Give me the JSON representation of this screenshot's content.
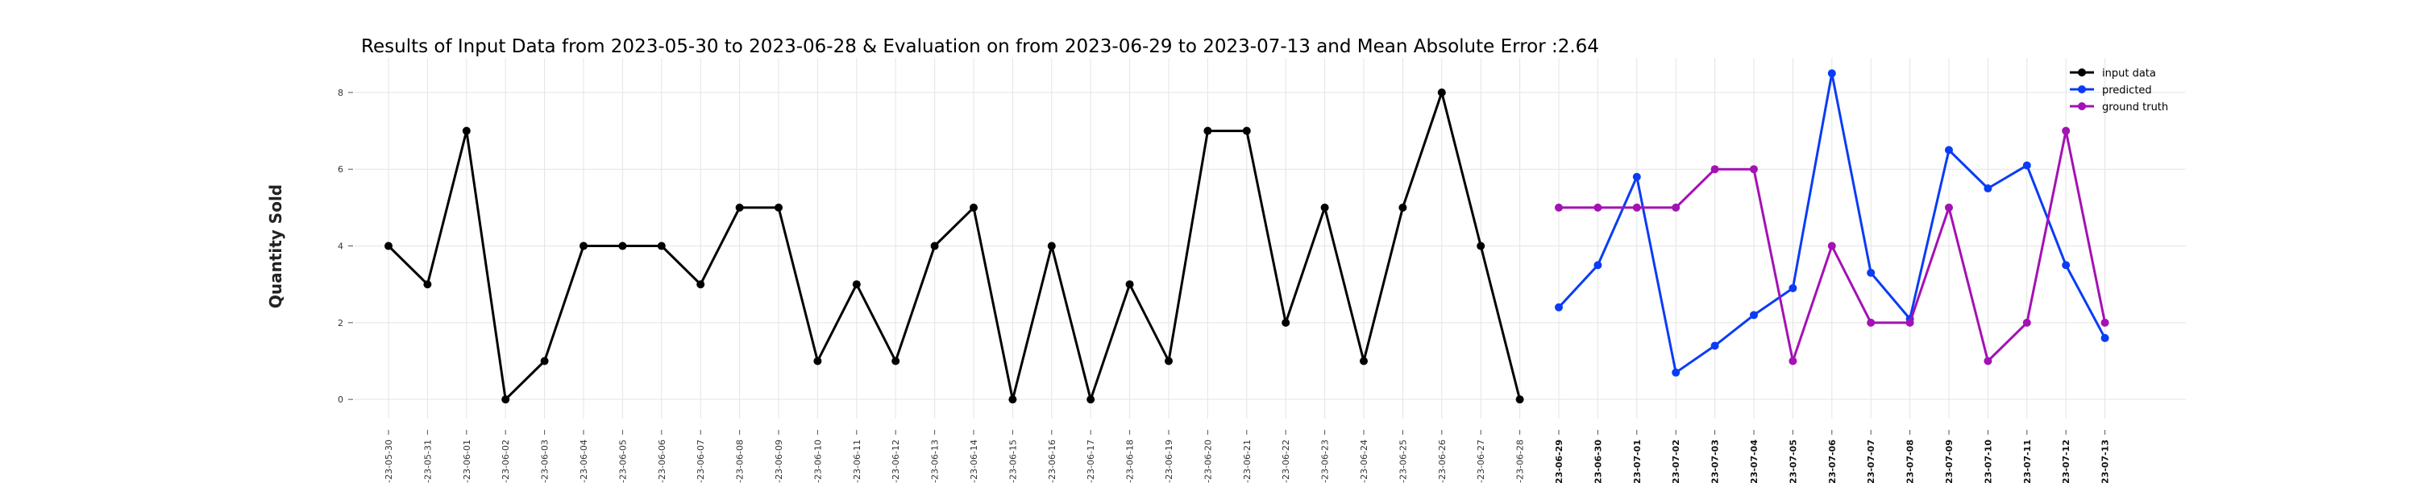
{
  "chart_data": {
    "type": "line",
    "title": "Results of Input Data from 2023-05-30 to 2023-06-28 & Evaluation on from 2023-06-29 to 2023-07-13 and Mean Absolute Error  :2.64",
    "xlabel": "",
    "ylabel": "Quantity Sold",
    "ylim": [
      -0.5,
      8.9
    ],
    "yticks": [
      0,
      2,
      4,
      6,
      8
    ],
    "grid": true,
    "legend": "top-right",
    "x": [
      "2023-05-30",
      "2023-05-31",
      "2023-06-01",
      "2023-06-02",
      "2023-06-03",
      "2023-06-04",
      "2023-06-05",
      "2023-06-06",
      "2023-06-07",
      "2023-06-08",
      "2023-06-09",
      "2023-06-10",
      "2023-06-11",
      "2023-06-12",
      "2023-06-13",
      "2023-06-14",
      "2023-06-15",
      "2023-06-16",
      "2023-06-17",
      "2023-06-18",
      "2023-06-19",
      "2023-06-20",
      "2023-06-21",
      "2023-06-22",
      "2023-06-23",
      "2023-06-24",
      "2023-06-25",
      "2023-06-26",
      "2023-06-27",
      "2023-06-28",
      "2023-06-29",
      "2023-06-30",
      "2023-07-01",
      "2023-07-02",
      "2023-07-03",
      "2023-07-04",
      "2023-07-05",
      "2023-07-06",
      "2023-07-07",
      "2023-07-08",
      "2023-07-09",
      "2023-07-10",
      "2023-07-11",
      "2023-07-12",
      "2023-07-13"
    ],
    "x_tick_labels": [
      "-23-05-30",
      "-23-05-31",
      "-23-06-01",
      "-23-06-02",
      "-23-06-03",
      "-23-06-04",
      "-23-06-05",
      "-23-06-06",
      "-23-06-07",
      "-23-06-08",
      "-23-06-09",
      "-23-06-10",
      "-23-06-11",
      "-23-06-12",
      "-23-06-13",
      "-23-06-14",
      "-23-06-15",
      "-23-06-16",
      "-23-06-17",
      "-23-06-18",
      "-23-06-19",
      "-23-06-20",
      "-23-06-21",
      "-23-06-22",
      "-23-06-23",
      "-23-06-24",
      "-23-06-25",
      "-23-06-26",
      "-23-06-27",
      "-23-06-28",
      "023-06-29",
      "023-06-30",
      "023-07-01",
      "023-07-02",
      "023-07-03",
      "023-07-04",
      "023-07-05",
      "023-07-06",
      "023-07-07",
      "023-07-08",
      "023-07-09",
      "023-07-10",
      "023-07-11",
      "023-07-12",
      "023-07-13"
    ],
    "series": [
      {
        "name": "input data",
        "color": "#000000",
        "x": [
          "2023-05-30",
          "2023-05-31",
          "2023-06-01",
          "2023-06-02",
          "2023-06-03",
          "2023-06-04",
          "2023-06-05",
          "2023-06-06",
          "2023-06-07",
          "2023-06-08",
          "2023-06-09",
          "2023-06-10",
          "2023-06-11",
          "2023-06-12",
          "2023-06-13",
          "2023-06-14",
          "2023-06-15",
          "2023-06-16",
          "2023-06-17",
          "2023-06-18",
          "2023-06-19",
          "2023-06-20",
          "2023-06-21",
          "2023-06-22",
          "2023-06-23",
          "2023-06-24",
          "2023-06-25",
          "2023-06-26",
          "2023-06-27",
          "2023-06-28"
        ],
        "values": [
          4,
          3,
          7,
          0,
          1,
          4,
          4,
          4,
          3,
          5,
          5,
          1,
          3,
          1,
          4,
          5,
          0,
          4,
          0,
          3,
          1,
          7,
          7,
          2,
          5,
          1,
          5,
          8,
          4,
          0
        ]
      },
      {
        "name": "predicted",
        "color": "#0a3cf5",
        "x": [
          "2023-06-29",
          "2023-06-30",
          "2023-07-01",
          "2023-07-02",
          "2023-07-03",
          "2023-07-04",
          "2023-07-05",
          "2023-07-06",
          "2023-07-07",
          "2023-07-08",
          "2023-07-09",
          "2023-07-10",
          "2023-07-11",
          "2023-07-12",
          "2023-07-13"
        ],
        "values": [
          2.4,
          3.5,
          5.8,
          0.7,
          1.4,
          2.2,
          2.9,
          8.5,
          3.3,
          2.1,
          6.5,
          5.5,
          6.1,
          3.5,
          1.6
        ]
      },
      {
        "name": "ground truth",
        "color": "#a411b4",
        "x": [
          "2023-06-29",
          "2023-06-30",
          "2023-07-01",
          "2023-07-02",
          "2023-07-03",
          "2023-07-04",
          "2023-07-05",
          "2023-07-06",
          "2023-07-07",
          "2023-07-08",
          "2023-07-09",
          "2023-07-10",
          "2023-07-11",
          "2023-07-12",
          "2023-07-13"
        ],
        "values": [
          5,
          5,
          5,
          5,
          6,
          6,
          1,
          4,
          2,
          2,
          5,
          1,
          2,
          7,
          2
        ]
      }
    ]
  }
}
